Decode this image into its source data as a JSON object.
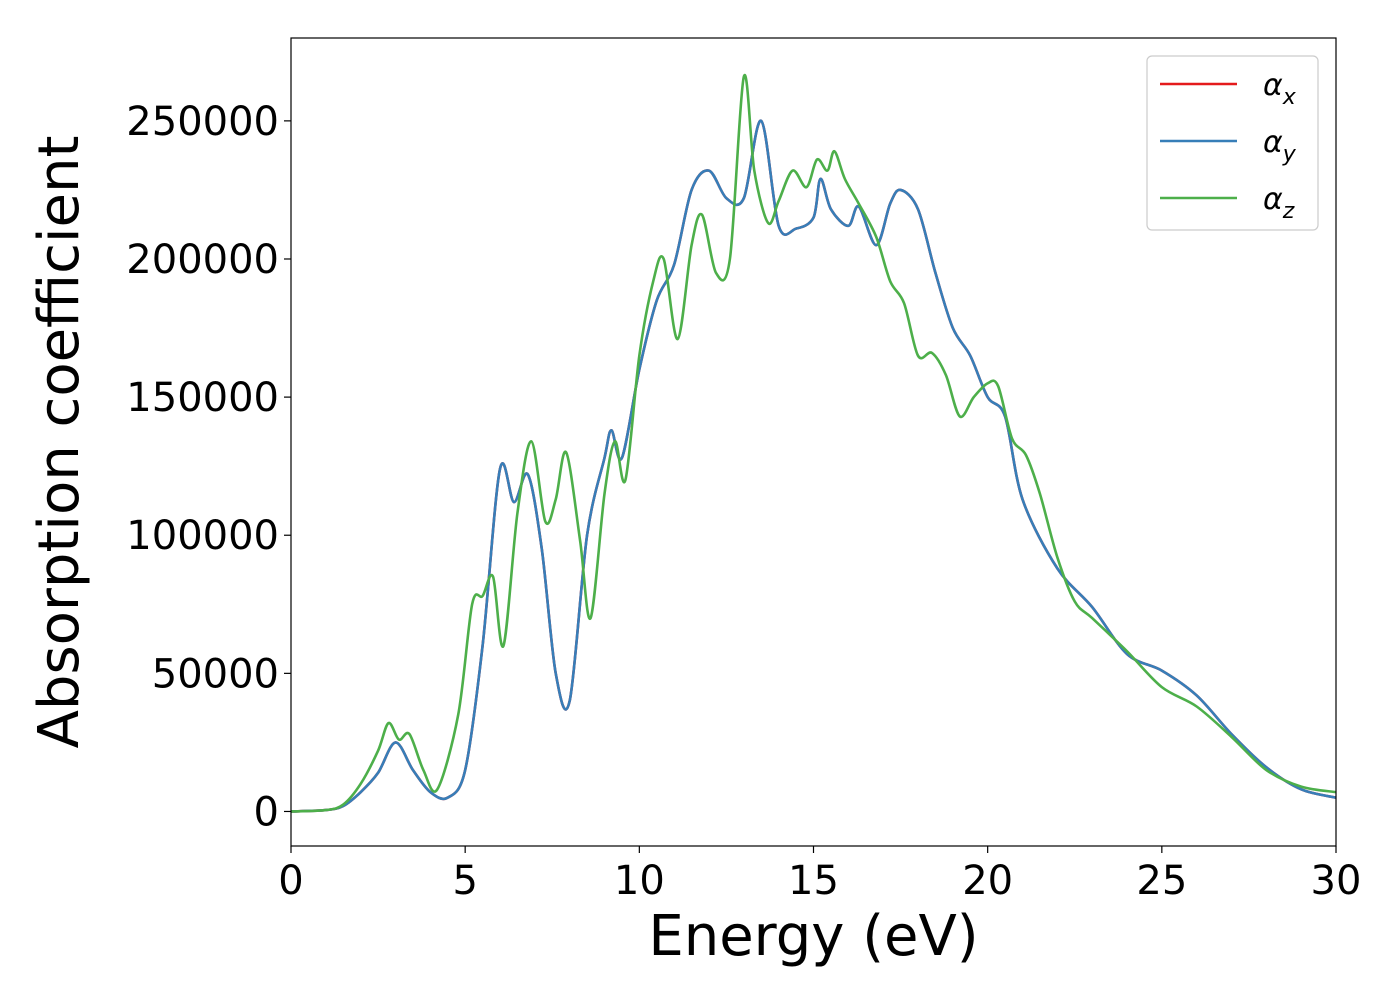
{
  "chart_data": {
    "type": "line",
    "xlabel": "Energy (eV)",
    "ylabel": "Absorption coefficient",
    "xlim": [
      0,
      30
    ],
    "ylim": [
      -12500,
      280000
    ],
    "xticks": [
      0,
      5,
      10,
      15,
      20,
      25,
      30
    ],
    "xtick_labels": [
      "0",
      "5",
      "10",
      "15",
      "20",
      "25",
      "30"
    ],
    "yticks": [
      0,
      50000,
      100000,
      150000,
      200000,
      250000
    ],
    "ytick_labels": [
      "0",
      "50000",
      "100000",
      "150000",
      "200000",
      "250000"
    ],
    "grid": false,
    "legend_position": "top-right",
    "series": [
      {
        "name": "α",
        "subscript": "x",
        "color": "#e41a1c",
        "x": [
          0,
          1,
          1.5,
          2,
          2.5,
          3,
          3.5,
          4,
          4.5,
          5,
          5.5,
          6,
          6.4,
          6.8,
          7.2,
          7.6,
          8,
          8.5,
          9,
          9.2,
          9.5,
          10,
          10.5,
          11,
          11.5,
          12,
          12.5,
          13,
          13.5,
          14,
          14.5,
          15,
          15.2,
          15.5,
          16,
          16.3,
          16.8,
          17.2,
          17.5,
          18,
          18.5,
          19,
          19.5,
          20,
          20.5,
          21,
          22,
          23,
          24,
          25,
          26,
          27,
          28,
          29,
          30
        ],
        "y": [
          0,
          500,
          2000,
          7000,
          14000,
          25000,
          15000,
          7000,
          5000,
          15000,
          60000,
          124000,
          112000,
          122000,
          95000,
          50000,
          40000,
          100000,
          128000,
          138000,
          128000,
          160000,
          185000,
          198000,
          225000,
          232000,
          222000,
          222000,
          250000,
          212000,
          211000,
          215000,
          229000,
          218000,
          212000,
          219000,
          205000,
          220000,
          225000,
          218000,
          195000,
          175000,
          165000,
          150000,
          143000,
          113000,
          88000,
          74000,
          57000,
          51000,
          42000,
          28000,
          16000,
          8000,
          5000
        ]
      },
      {
        "name": "α",
        "subscript": "y",
        "color": "#377eb8",
        "x": [
          0,
          1,
          1.5,
          2,
          2.5,
          3,
          3.5,
          4,
          4.5,
          5,
          5.5,
          6,
          6.4,
          6.8,
          7.2,
          7.6,
          8,
          8.5,
          9,
          9.2,
          9.5,
          10,
          10.5,
          11,
          11.5,
          12,
          12.5,
          13,
          13.5,
          14,
          14.5,
          15,
          15.2,
          15.5,
          16,
          16.3,
          16.8,
          17.2,
          17.5,
          18,
          18.5,
          19,
          19.5,
          20,
          20.5,
          21,
          22,
          23,
          24,
          25,
          26,
          27,
          28,
          29,
          30
        ],
        "y": [
          0,
          500,
          2000,
          7000,
          14000,
          25000,
          15000,
          7000,
          5000,
          15000,
          60000,
          124000,
          112000,
          122000,
          95000,
          50000,
          40000,
          100000,
          128000,
          138000,
          128000,
          160000,
          185000,
          198000,
          225000,
          232000,
          222000,
          222000,
          250000,
          212000,
          211000,
          215000,
          229000,
          218000,
          212000,
          219000,
          205000,
          220000,
          225000,
          218000,
          195000,
          175000,
          165000,
          150000,
          143000,
          113000,
          88000,
          74000,
          57000,
          51000,
          42000,
          28000,
          16000,
          8000,
          5000
        ]
      },
      {
        "name": "α",
        "subscript": "z",
        "color": "#4daf4a",
        "x": [
          0,
          1,
          1.5,
          2,
          2.5,
          2.8,
          3.1,
          3.4,
          3.8,
          4.2,
          4.8,
          5.2,
          5.5,
          5.8,
          6.1,
          6.5,
          6.9,
          7.3,
          7.6,
          7.9,
          8.3,
          8.6,
          9,
          9.3,
          9.6,
          10,
          10.4,
          10.7,
          11.1,
          11.5,
          11.8,
          12.2,
          12.6,
          13,
          13.3,
          13.7,
          14,
          14.4,
          14.8,
          15.1,
          15.4,
          15.6,
          15.9,
          16.3,
          16.8,
          17.2,
          17.6,
          18,
          18.4,
          18.8,
          19.2,
          19.6,
          20,
          20.3,
          20.7,
          21.1,
          21.5,
          22,
          22.5,
          23,
          24,
          25,
          26,
          27,
          28,
          29,
          30
        ],
        "y": [
          0,
          500,
          2500,
          10000,
          22000,
          32000,
          26000,
          28000,
          15000,
          8000,
          35000,
          75000,
          78000,
          85000,
          60000,
          108000,
          134000,
          105000,
          113000,
          130000,
          98000,
          70000,
          115000,
          134000,
          120000,
          165000,
          192000,
          200000,
          171000,
          205000,
          216000,
          195000,
          200000,
          266000,
          232000,
          213000,
          221000,
          232000,
          226000,
          236000,
          232000,
          239000,
          229000,
          220000,
          208000,
          192000,
          184000,
          165000,
          166000,
          158000,
          143000,
          150000,
          155000,
          154000,
          135000,
          129000,
          115000,
          92000,
          76000,
          70000,
          58000,
          45000,
          38000,
          27000,
          15000,
          9000,
          7000
        ]
      }
    ]
  }
}
